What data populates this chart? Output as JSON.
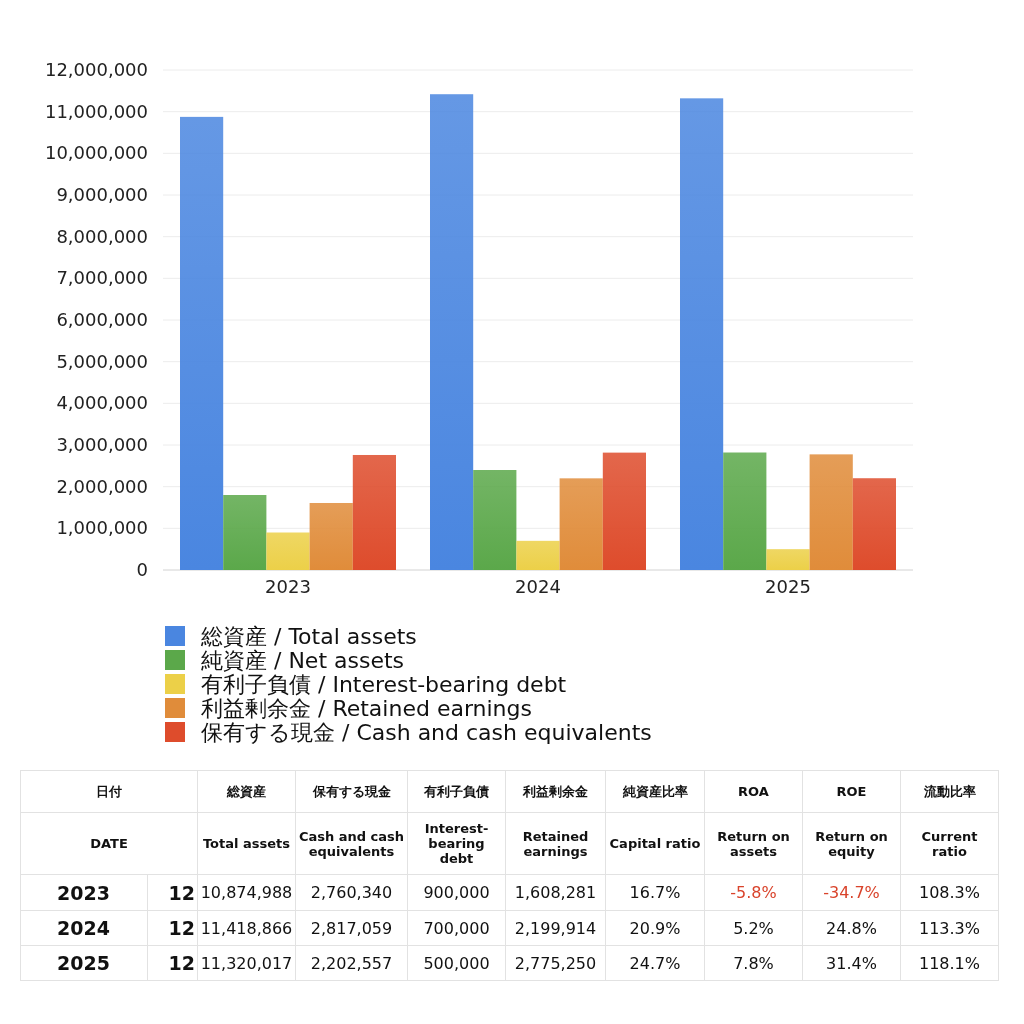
{
  "chart_data": [
    {
      "type": "bar",
      "categories": [
        "2023",
        "2024",
        "2025"
      ],
      "ylim": [
        0,
        12000000
      ],
      "yticks": [
        {
          "value": 0,
          "label": "0"
        },
        {
          "value": 1000000,
          "label": "1,000,000"
        },
        {
          "value": 2000000,
          "label": "2,000,000"
        },
        {
          "value": 3000000,
          "label": "3,000,000"
        },
        {
          "value": 4000000,
          "label": "4,000,000"
        },
        {
          "value": 5000000,
          "label": "5,000,000"
        },
        {
          "value": 6000000,
          "label": "6,000,000"
        },
        {
          "value": 7000000,
          "label": "7,000,000"
        },
        {
          "value": 8000000,
          "label": "8,000,000"
        },
        {
          "value": 9000000,
          "label": "9,000,000"
        },
        {
          "value": 10000000,
          "label": "10,000,000"
        },
        {
          "value": 11000000,
          "label": "11,000,000"
        },
        {
          "value": 12000000,
          "label": "12,000,000"
        }
      ],
      "grid": "y",
      "legend": "bottom",
      "series": [
        {
          "name": "総資産 / Total assets",
          "color": "#4a86e0",
          "values": [
            10874988,
            11418866,
            11320017
          ]
        },
        {
          "name": "純資産 / Net assets",
          "color": "#5ba84a",
          "values": [
            1800000,
            2400000,
            2820000
          ]
        },
        {
          "name": "有利子負債 / Interest-bearing debt",
          "color": "#ecd048",
          "values": [
            900000,
            700000,
            500000
          ]
        },
        {
          "name": "利益剰余金 / Retained earnings",
          "color": "#e08c3a",
          "values": [
            1608281,
            2199914,
            2775250
          ]
        },
        {
          "name": "保有する現金 /  Cash and cash equivalents",
          "color": "#de4c2c",
          "values": [
            2760340,
            2817059,
            2202557
          ]
        }
      ]
    },
    {
      "type": "other",
      "cell_labels": [
        [
          "日付",
          null,
          "総資産",
          "保有する現金",
          "有利子負債",
          "利益剰余金",
          "純資産比率",
          "ROA",
          "ROE",
          "流動比率"
        ],
        [
          "DATE",
          null,
          "Total assets",
          "Cash and cash equivalents",
          "Interest-bearing debt",
          "Retained earnings",
          "Capital ratio",
          "Return on assets",
          "Return on equity",
          "Current ratio"
        ],
        [
          "2023",
          "12",
          "10,874,988",
          "2,760,340",
          "900,000",
          "1,608,281",
          "16.7%",
          "-5.8%",
          "-34.7%",
          "108.3%"
        ],
        [
          "2024",
          "12",
          "11,418,866",
          "2,817,059",
          "700,000",
          "2,199,914",
          "20.9%",
          "5.2%",
          "24.8%",
          "113.3%"
        ],
        [
          "2025",
          "12",
          "11,320,017",
          "2,202,557",
          "500,000",
          "2,775,250",
          "24.7%",
          "7.8%",
          "31.4%",
          "118.1%"
        ]
      ],
      "colors": [
        [
          null,
          null,
          null,
          null,
          null,
          null,
          null,
          null,
          null,
          null
        ],
        [
          null,
          null,
          null,
          null,
          null,
          null,
          null,
          null,
          null,
          null
        ],
        [
          null,
          null,
          null,
          null,
          null,
          null,
          null,
          "#d9432b",
          "#d9432b",
          null
        ],
        [
          null,
          null,
          null,
          null,
          null,
          null,
          null,
          null,
          null,
          null
        ],
        [
          null,
          null,
          null,
          null,
          null,
          null,
          null,
          null,
          null,
          null
        ]
      ]
    }
  ]
}
